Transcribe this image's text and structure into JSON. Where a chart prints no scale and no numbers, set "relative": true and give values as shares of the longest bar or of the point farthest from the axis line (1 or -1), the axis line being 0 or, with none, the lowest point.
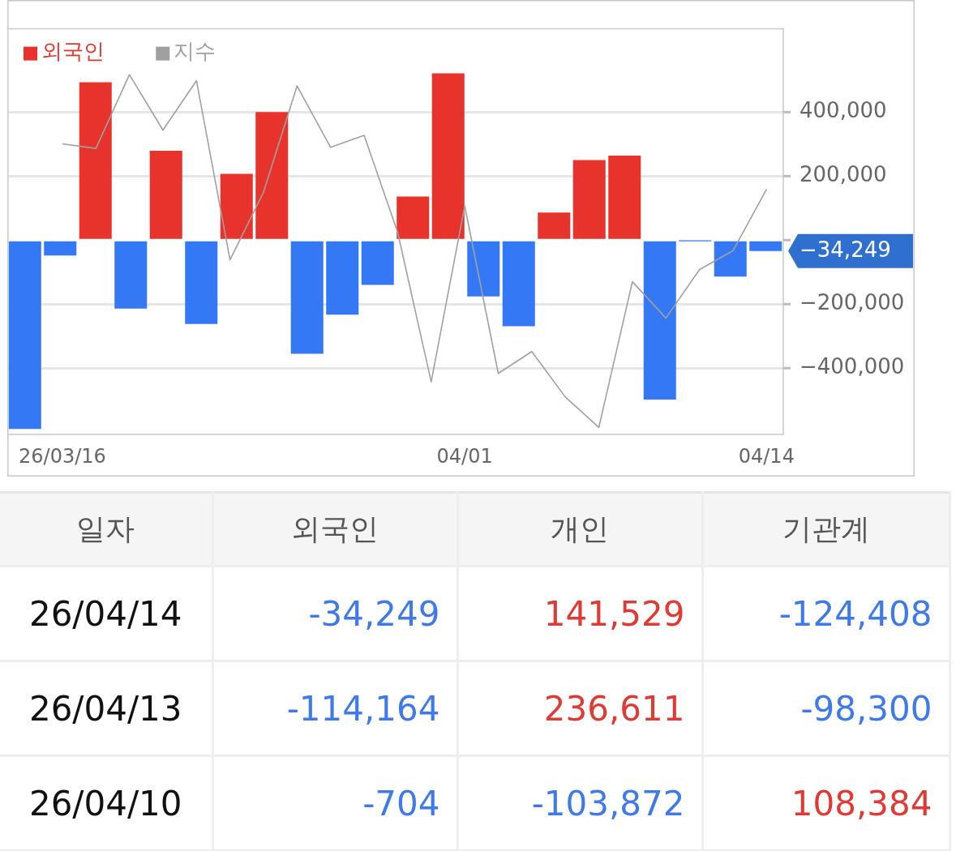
{
  "chart_data": [
    {
      "type": "bar",
      "categories": [
        null,
        null,
        null,
        null,
        null,
        null,
        null,
        null,
        null,
        null,
        null,
        null,
        null,
        null,
        null,
        null,
        null,
        null,
        null,
        null,
        null,
        null
      ],
      "tick_labels": "y",
      "series": [
        {
          "name": "외국인",
          "type": "bar",
          "color": "#e8322c",
          "colors": [
            "#3478f6",
            "#3478f6",
            "#e8322c",
            "#3478f6",
            "#e8322c",
            "#3478f6",
            "#e8322c",
            "#e8322c",
            "#3478f6",
            "#3478f6",
            "#3478f6",
            "#e8322c",
            "#e8322c",
            "#3478f6",
            "#3478f6",
            "#e8322c",
            "#e8322c",
            "#e8322c",
            "#3478f6",
            "#3478f6",
            "#3478f6",
            "#3478f6"
          ],
          "values": [
            -590000,
            -48000,
            493000,
            -214000,
            279000,
            -262000,
            207000,
            400000,
            -355000,
            -233000,
            -140000,
            136000,
            521000,
            -176000,
            -269000,
            86000,
            250000,
            264000,
            -498000,
            -704,
            -114164,
            -34249
          ]
        }
      ],
      "ylim": [
        -607000,
        660000
      ],
      "yticks": [
        {
          "value": 400000,
          "label": "400,000"
        },
        {
          "value": 200000,
          "label": "200,000"
        },
        {
          "value": 0,
          "label": null
        },
        {
          "value": -200000,
          "label": "−200,000"
        },
        {
          "value": -400000,
          "label": "−400,000"
        }
      ],
      "grid": "y",
      "legend": "top left",
      "annotations": [
        "−34,249"
      ]
    },
    {
      "type": "line",
      "relative": true,
      "categories": [
        "26/03/16",
        null,
        null,
        null,
        null,
        null,
        null,
        null,
        null,
        null,
        null,
        null,
        "04/01",
        null,
        null,
        null,
        null,
        null,
        null,
        null,
        null,
        "04/14"
      ],
      "series": [
        {
          "name": "지수",
          "color": "#a0a0a0",
          "values": [
            0.804,
            0.791,
            1.0,
            0.843,
            0.983,
            0.475,
            0.667,
            0.968,
            0.794,
            0.828,
            0.553,
            0.129,
            0.628,
            0.153,
            0.215,
            0.086,
            0,
            0.413,
            0.31,
            0.447,
            0.501,
            0.675
          ]
        }
      ],
      "legend": "top left",
      "marker": "none",
      "tick_labels": "x"
    },
    {
      "type": "other",
      "categories": [
        "일자",
        "외국인",
        "개인",
        "기관계"
      ],
      "y_categories": [
        "26/04/14",
        "26/04/13",
        "26/04/10"
      ],
      "cell_labels": [
        [
          "-34,249",
          "141,529",
          "-124,408"
        ],
        [
          "-114,164",
          "236,611",
          "-98,300"
        ],
        [
          "-704",
          "-103,872",
          "108,384"
        ]
      ]
    }
  ]
}
